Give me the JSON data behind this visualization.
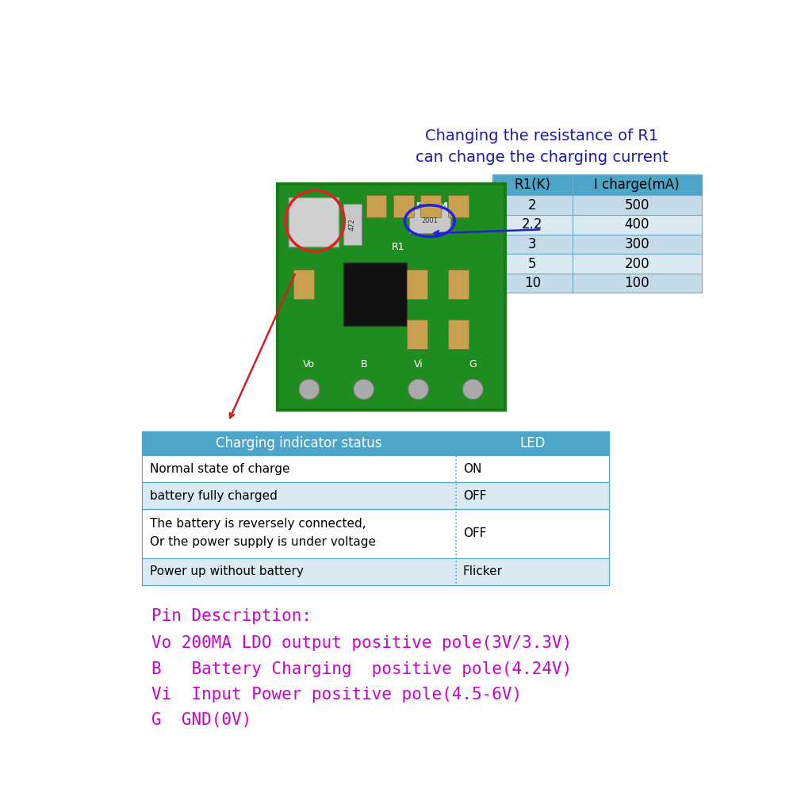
{
  "bg_color": "#ffffff",
  "annotation_text": "Changing the resistance of R1\ncan change the charging current",
  "annotation_color": "#1a1aaa",
  "annotation_fontsize": 14,
  "r1_table": {
    "header": [
      "R1(K)",
      "I charge(mA)"
    ],
    "rows": [
      [
        "2",
        "500"
      ],
      [
        "2.2",
        "400"
      ],
      [
        "3",
        "300"
      ],
      [
        "5",
        "200"
      ],
      [
        "10",
        "100"
      ]
    ],
    "header_bg": "#4da6c8",
    "row_bg_odd": "#c5dce8",
    "row_bg_even": "#daeaf2",
    "text_color": "#000000",
    "border_color": "#6aabca",
    "fontsize": 12
  },
  "indicator_table": {
    "header": [
      "Charging indicator status",
      "LED"
    ],
    "rows": [
      [
        "Normal state of charge",
        "ON"
      ],
      [
        "battery fully charged",
        "OFF"
      ],
      [
        "The battery is reversely connected,\nOr the power supply is under voltage",
        "OFF"
      ],
      [
        "Power up without battery",
        "Flicker"
      ]
    ],
    "header_bg": "#4da6c8",
    "row_bg_odd": "#ffffff",
    "row_bg_even": "#daeaf2",
    "text_color": "#000000",
    "border_color": "#4da6c8",
    "header_fontsize": 12,
    "fontsize": 11
  },
  "pin_description": {
    "title": "Pin Description:",
    "lines": [
      "Vo 200MA LDO output positive pole(3V/3.3V)",
      "B   Battery Charging  positive pole(4.24V)",
      "Vi  Input Power positive pole(4.5-6V)",
      "G  GND(0V)"
    ],
    "color": "#cc00cc",
    "fontsize": 15
  }
}
